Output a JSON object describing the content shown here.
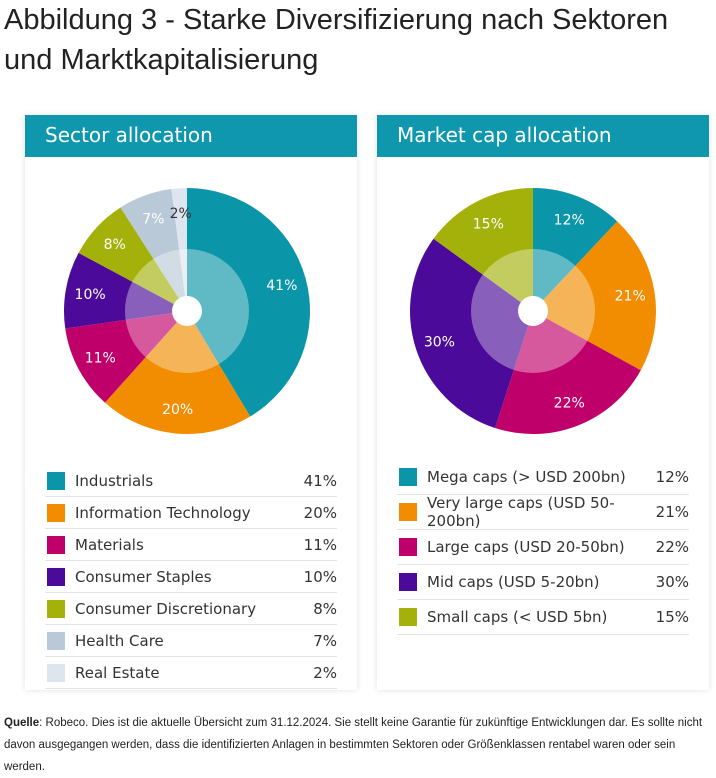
{
  "title": "Abbildung 3 - Starke Diversifizierung nach Sektoren und Marktkapitalisierung",
  "chart_data": [
    {
      "type": "pie",
      "title": "Sector allocation",
      "categories": [
        "Industrials",
        "Information Technology",
        "Materials",
        "Consumer Staples",
        "Consumer Discretionary",
        "Health Care",
        "Real Estate"
      ],
      "values": [
        41,
        20,
        11,
        10,
        8,
        7,
        2
      ],
      "labels": [
        "41%",
        "20%",
        "11%",
        "10%",
        "8%",
        "7%",
        "2%"
      ],
      "colors": [
        "#0a95a8",
        "#f28c00",
        "#c0006a",
        "#4b0a99",
        "#a3b10a",
        "#b9c9d8",
        "#dde6ee"
      ],
      "label_colors": [
        "#ffffff",
        "#ffffff",
        "#ffffff",
        "#ffffff",
        "#ffffff",
        "#ffffff",
        "#333333"
      ]
    },
    {
      "type": "pie",
      "title": "Market cap allocation",
      "categories": [
        "Mega caps (> USD 200bn)",
        "Very large caps (USD 50-200bn)",
        "Large caps (USD 20-50bn)",
        "Mid caps (USD 5-20bn)",
        "Small caps (< USD 5bn)"
      ],
      "values": [
        12,
        21,
        22,
        30,
        15
      ],
      "labels": [
        "12%",
        "21%",
        "22%",
        "30%",
        "15%"
      ],
      "colors": [
        "#0a95a8",
        "#f28c00",
        "#c0006a",
        "#4b0a99",
        "#a3b10a"
      ],
      "label_colors": [
        "#ffffff",
        "#ffffff",
        "#ffffff",
        "#ffffff",
        "#ffffff"
      ]
    }
  ],
  "footer": {
    "bold": "Quelle",
    "text": ": Robeco. Dies ist die aktuelle Übersicht zum 31.12.2024. Sie stellt keine Garantie für zukünftige Entwicklungen dar. Es sollte nicht davon ausgegangen werden, dass die identifizierten Anlagen in bestimmten Sektoren oder Größenklassen rentabel waren oder sein werden."
  }
}
